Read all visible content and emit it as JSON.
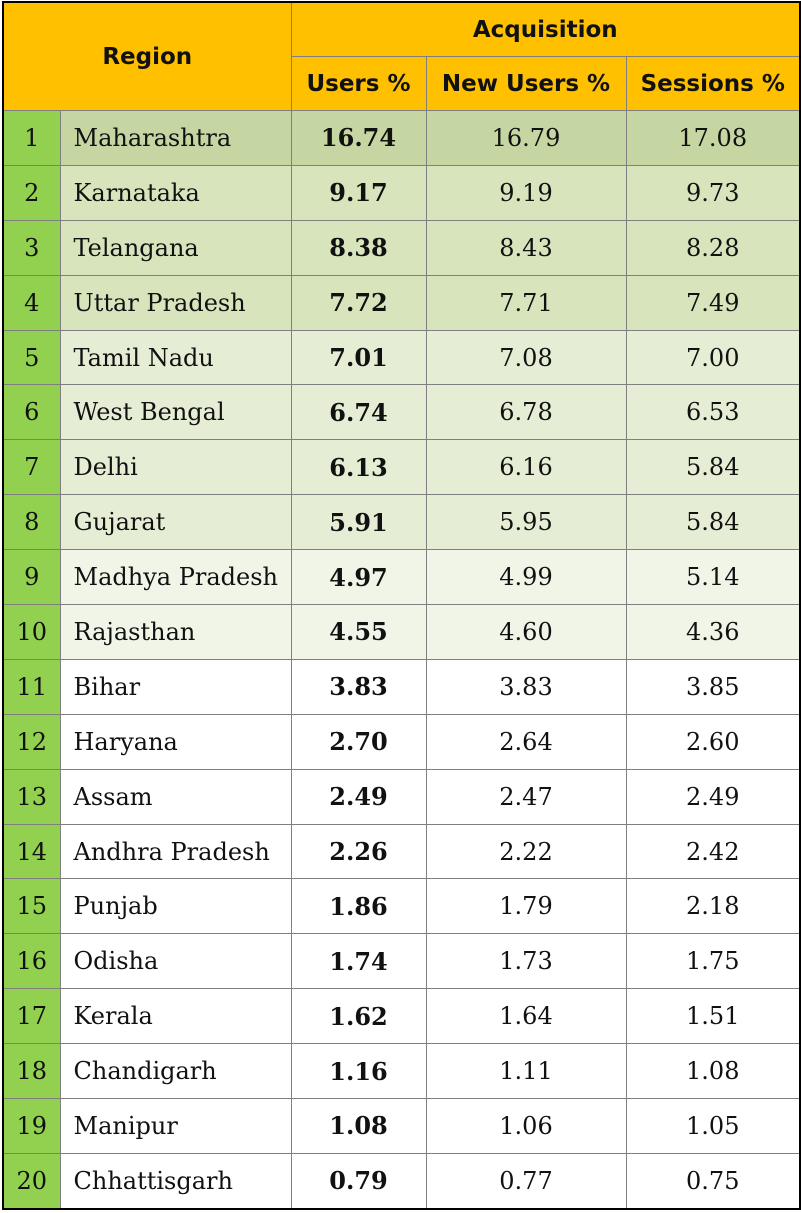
{
  "chart_data": {
    "type": "table",
    "header": {
      "region": "Region",
      "acquisition": "Acquisition",
      "columns": [
        "Users %",
        "New Users %",
        "Sessions %"
      ]
    },
    "colors": {
      "header_bg": "#ffc000",
      "index_bg": "#92d050",
      "heat_scale": [
        "#c5d6a2",
        "#d8e4bc",
        "#e5eed5",
        "#f0f5e8",
        "#ffffff"
      ]
    },
    "rows": [
      {
        "rank": "1",
        "region": "Maharashtra",
        "users": "16.74",
        "new_users": "16.79",
        "sessions": "17.08"
      },
      {
        "rank": "2",
        "region": "Karnataka",
        "users": "9.17",
        "new_users": "9.19",
        "sessions": "9.73"
      },
      {
        "rank": "3",
        "region": "Telangana",
        "users": "8.38",
        "new_users": "8.43",
        "sessions": "8.28"
      },
      {
        "rank": "4",
        "region": "Uttar Pradesh",
        "users": "7.72",
        "new_users": "7.71",
        "sessions": "7.49"
      },
      {
        "rank": "5",
        "region": "Tamil Nadu",
        "users": "7.01",
        "new_users": "7.08",
        "sessions": "7.00"
      },
      {
        "rank": "6",
        "region": "West Bengal",
        "users": "6.74",
        "new_users": "6.78",
        "sessions": "6.53"
      },
      {
        "rank": "7",
        "region": "Delhi",
        "users": "6.13",
        "new_users": "6.16",
        "sessions": "5.84"
      },
      {
        "rank": "8",
        "region": "Gujarat",
        "users": "5.91",
        "new_users": "5.95",
        "sessions": "5.84"
      },
      {
        "rank": "9",
        "region": "Madhya Pradesh",
        "users": "4.97",
        "new_users": "4.99",
        "sessions": "5.14"
      },
      {
        "rank": "10",
        "region": "Rajasthan",
        "users": "4.55",
        "new_users": "4.60",
        "sessions": "4.36"
      },
      {
        "rank": "11",
        "region": "Bihar",
        "users": "3.83",
        "new_users": "3.83",
        "sessions": "3.85"
      },
      {
        "rank": "12",
        "region": "Haryana",
        "users": "2.70",
        "new_users": "2.64",
        "sessions": "2.60"
      },
      {
        "rank": "13",
        "region": "Assam",
        "users": "2.49",
        "new_users": "2.47",
        "sessions": "2.49"
      },
      {
        "rank": "14",
        "region": "Andhra Pradesh",
        "users": "2.26",
        "new_users": "2.22",
        "sessions": "2.42"
      },
      {
        "rank": "15",
        "region": "Punjab",
        "users": "1.86",
        "new_users": "1.79",
        "sessions": "2.18"
      },
      {
        "rank": "16",
        "region": "Odisha",
        "users": "1.74",
        "new_users": "1.73",
        "sessions": "1.75"
      },
      {
        "rank": "17",
        "region": "Kerala",
        "users": "1.62",
        "new_users": "1.64",
        "sessions": "1.51"
      },
      {
        "rank": "18",
        "region": "Chandigarh",
        "users": "1.16",
        "new_users": "1.11",
        "sessions": "1.08"
      },
      {
        "rank": "19",
        "region": "Manipur",
        "users": "1.08",
        "new_users": "1.06",
        "sessions": "1.05"
      },
      {
        "rank": "20",
        "region": "Chhattisgarh",
        "users": "0.79",
        "new_users": "0.77",
        "sessions": "0.75"
      }
    ]
  }
}
